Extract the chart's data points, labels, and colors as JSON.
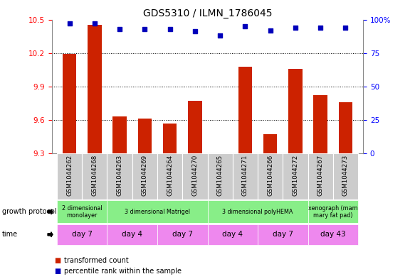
{
  "title": "GDS5310 / ILMN_1786045",
  "samples": [
    "GSM1044262",
    "GSM1044268",
    "GSM1044263",
    "GSM1044269",
    "GSM1044264",
    "GSM1044270",
    "GSM1044265",
    "GSM1044271",
    "GSM1044266",
    "GSM1044272",
    "GSM1044267",
    "GSM1044273"
  ],
  "bar_values": [
    10.19,
    10.45,
    9.63,
    9.61,
    9.57,
    9.77,
    9.3,
    10.08,
    9.47,
    10.06,
    9.82,
    9.76
  ],
  "percentile_values": [
    97,
    97,
    93,
    93,
    93,
    91,
    88,
    95,
    92,
    94,
    94,
    94
  ],
  "ylim": [
    9.3,
    10.5
  ],
  "yticks": [
    9.3,
    9.6,
    9.9,
    10.2,
    10.5
  ],
  "right_yticks": [
    0,
    25,
    50,
    75,
    100
  ],
  "bar_color": "#cc2200",
  "dot_color": "#0000bb",
  "bar_width": 0.55,
  "gp_groups": [
    {
      "label": "2 dimensional\nmonolayer",
      "start": 0,
      "end": 2,
      "color": "#88ee88"
    },
    {
      "label": "3 dimensional Matrigel",
      "start": 2,
      "end": 6,
      "color": "#88ee88"
    },
    {
      "label": "3 dimensional polyHEMA",
      "start": 6,
      "end": 10,
      "color": "#88ee88"
    },
    {
      "label": "xenograph (mam\nmary fat pad)",
      "start": 10,
      "end": 12,
      "color": "#88ee88"
    }
  ],
  "time_groups": [
    {
      "label": "day 7",
      "start": 0,
      "end": 2,
      "color": "#ee88ee"
    },
    {
      "label": "day 4",
      "start": 2,
      "end": 4,
      "color": "#ee88ee"
    },
    {
      "label": "day 7",
      "start": 4,
      "end": 6,
      "color": "#ee88ee"
    },
    {
      "label": "day 4",
      "start": 6,
      "end": 8,
      "color": "#ee88ee"
    },
    {
      "label": "day 7",
      "start": 8,
      "end": 10,
      "color": "#ee88ee"
    },
    {
      "label": "day 43",
      "start": 10,
      "end": 12,
      "color": "#ee88ee"
    }
  ],
  "legend_items": [
    {
      "label": "transformed count",
      "color": "#cc2200"
    },
    {
      "label": "percentile rank within the sample",
      "color": "#0000bb"
    }
  ],
  "grid_color": "#555555",
  "sample_bg_color": "#cccccc"
}
